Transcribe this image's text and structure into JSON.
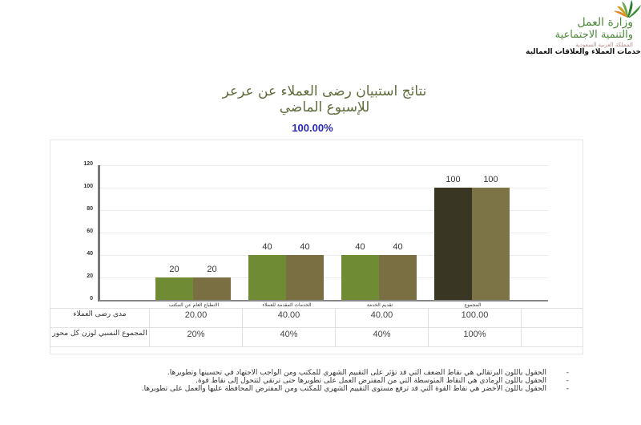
{
  "header": {
    "logo_line1": "وزارة العمل",
    "logo_line2": "والتنمية الاجتماعية",
    "logo_line3": "المملكة العربية السعودية",
    "department": "خدمات العملاء والعلاقات العمالية",
    "logo_icon": "palm-leaf-logo-icon"
  },
  "title": {
    "line1": "نتائج استبيان رضى العملاء عن عرعر",
    "line2": "للإسبوع الماضي",
    "overall_percent": "100.00%"
  },
  "colors": {
    "title": "#5e6b3a",
    "percent": "#2a2ab8",
    "bar_green": "#6f8c35",
    "bar_olive": "#7a6e43",
    "bar_dark": "#3a3624",
    "bar_khaki": "#7c7346"
  },
  "chart_data": {
    "type": "bar",
    "title": "نتائج استبيان رضى العملاء عن عرعر للإسبوع الماضي",
    "subtitle": "100.00%",
    "xlabel": "",
    "ylabel": "",
    "ylim": [
      0,
      120
    ],
    "yticks": [
      0,
      20,
      40,
      60,
      80,
      100,
      120
    ],
    "grid": true,
    "legend": "none",
    "categories": [
      "الانطباع العام عن المكتب",
      "الخدمات المقدمة للعملاء",
      "تقديم الخدمة",
      "المجموع"
    ],
    "series": [
      {
        "name": "مدى رضى العملاء",
        "values": [
          20,
          40,
          40,
          100
        ]
      },
      {
        "name": "المجموع النسبي لوزن كل محور",
        "values": [
          20,
          40,
          40,
          100
        ]
      }
    ],
    "data_labels": [
      [
        "20",
        "20"
      ],
      [
        "40",
        "40"
      ],
      [
        "40",
        "40"
      ],
      [
        "100",
        "100"
      ]
    ]
  },
  "table": {
    "rows": [
      {
        "label": "مدى رضى العملاء",
        "values": [
          "20.00",
          "40.00",
          "40.00",
          "100.00"
        ]
      },
      {
        "label": "المجموع النسبي لوزن كل محور",
        "values": [
          "20%",
          "40%",
          "40%",
          "100%"
        ]
      }
    ]
  },
  "notes": [
    "الحقول باللون البرتقالي هي نقاط الضعف التي قد تؤثر على التقييم الشهري للمكتب ومن الواجب الاجتهاد في تحسينها وتطويرها.",
    "الحقول باللون الرمادي هي النقاط المتوسطة التي من المفترض العمل على تطويرها حتى ترتقي لتتحول إلى نقاط قوة.",
    "الحقول باللون الأخضر هي نقاط القوة التي قد ترفع مستوى التقييم الشهري للمكتب ومن المفترض المحافظة عليها والعمل على تطويرها."
  ],
  "bullet": "-"
}
